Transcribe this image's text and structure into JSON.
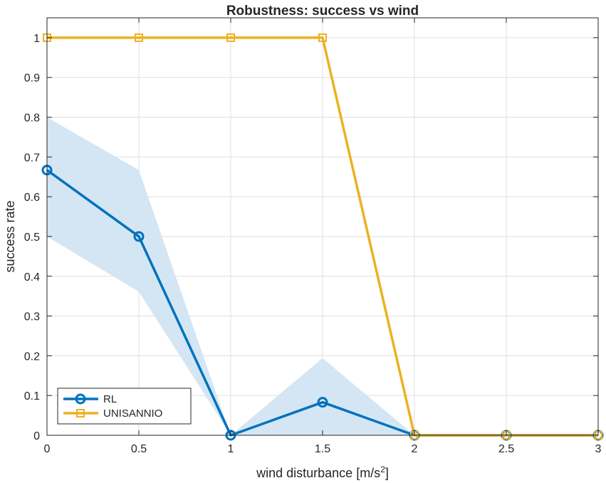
{
  "chart_data": {
    "type": "line",
    "title": "Robustness: success vs wind",
    "xlabel_main": "wind  disturbance  [m/s",
    "xlabel_sup": "2",
    "xlabel_close": "]",
    "ylabel": "success rate",
    "xlim": [
      0,
      3
    ],
    "ylim": [
      0,
      1.05
    ],
    "xticks": [
      0,
      0.5,
      1,
      1.5,
      2,
      2.5,
      3
    ],
    "xtick_labels": [
      "0",
      "0.5",
      "1",
      "1.5",
      "2",
      "2.5",
      "3"
    ],
    "yticks": [
      0,
      0.1,
      0.2,
      0.3,
      0.4,
      0.5,
      0.6,
      0.7,
      0.8,
      0.9,
      1
    ],
    "ytick_labels": [
      "0",
      "0.1",
      "0.2",
      "0.3",
      "0.4",
      "0.5",
      "0.6",
      "0.7",
      "0.8",
      "0.9",
      "1"
    ],
    "grid": true,
    "legend_position": "bottom-left",
    "x": [
      0,
      0.5,
      1,
      1.5,
      2,
      2.5,
      3
    ],
    "series": [
      {
        "name": "RL",
        "values": [
          0.667,
          0.5,
          0,
          0.083,
          0,
          0,
          0
        ],
        "band_upper": [
          0.8,
          0.667,
          0,
          0.194,
          0,
          0,
          0
        ],
        "band_lower": [
          0.5,
          0.361,
          0,
          0,
          0,
          0,
          0
        ],
        "color": "#0072bd",
        "band_color": "#d4e6f4",
        "marker": "circle"
      },
      {
        "name": "UNISANNIO",
        "values": [
          1,
          1,
          1,
          1,
          0,
          0,
          0
        ],
        "color": "#edb120",
        "marker": "square"
      }
    ]
  }
}
